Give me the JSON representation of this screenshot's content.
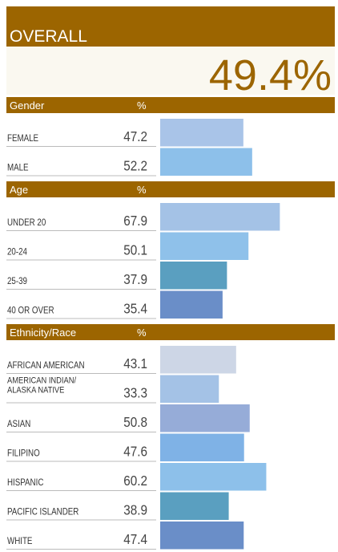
{
  "overall": {
    "title": "OVERALL",
    "value_label": "49.4%"
  },
  "groups": [
    {
      "title": "Gender",
      "unit": "%",
      "rows": [
        {
          "label": "FEMALE",
          "value": 47.2,
          "color": "#a9c4e8"
        },
        {
          "label": "MALE",
          "value": 52.2,
          "color": "#8dc0ea"
        }
      ]
    },
    {
      "title": "Age",
      "unit": "%",
      "rows": [
        {
          "label": "UNDER 20",
          "value": 67.9,
          "color": "#a4c2e6"
        },
        {
          "label": "20-24",
          "value": 50.1,
          "color": "#8fc1ea"
        },
        {
          "label": "25-39",
          "value": 37.9,
          "color": "#5a9fc0"
        },
        {
          "label": "40 OR OVER",
          "value": 35.4,
          "color": "#6a8ec8"
        }
      ]
    },
    {
      "title": "Ethnicity/Race",
      "unit": "%",
      "rows": [
        {
          "label": "AFRICAN AMERICAN",
          "value": 43.1,
          "color": "#cdd6e6"
        },
        {
          "label": [
            "AMERICAN INDIAN/",
            "ALASKA NATIVE"
          ],
          "value": 33.3,
          "color": "#a4c2e6"
        },
        {
          "label": "ASIAN",
          "value": 50.8,
          "color": "#96acd8"
        },
        {
          "label": "FILIPINO",
          "value": 47.6,
          "color": "#7fb2e6"
        },
        {
          "label": "HISPANIC",
          "value": 60.2,
          "color": "#8dc0ea"
        },
        {
          "label": "PACIFIC ISLANDER",
          "value": 38.9,
          "color": "#5a9fc0"
        },
        {
          "label": "WHITE",
          "value": 47.4,
          "color": "#6a8ec8"
        }
      ]
    }
  ]
}
